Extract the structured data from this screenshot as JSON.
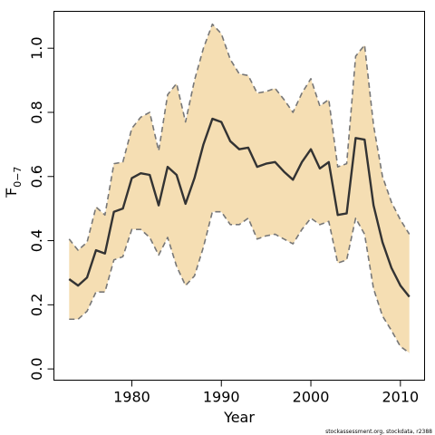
{
  "chart_data": {
    "type": "line",
    "title": "",
    "xlabel": "Year",
    "ylabel_main": "F",
    "ylabel_sub": "0−7",
    "xlim": [
      1971.3,
      2012.7
    ],
    "ylim": [
      -0.035,
      1.115
    ],
    "xticks": [
      1980,
      1990,
      2000,
      2010
    ],
    "yticks": [
      0.0,
      0.2,
      0.4,
      0.6,
      0.8,
      1.0
    ],
    "ytick_labels": [
      "0.0",
      "0.2",
      "0.4",
      "0.6",
      "0.8",
      "1.0"
    ],
    "band_color": "#F5DEB3",
    "line_color": "#333333",
    "bound_color": "#777777",
    "x": [
      1973,
      1974,
      1975,
      1976,
      1977,
      1978,
      1979,
      1980,
      1981,
      1982,
      1983,
      1984,
      1985,
      1986,
      1987,
      1988,
      1989,
      1990,
      1991,
      1992,
      1993,
      1994,
      1995,
      1996,
      1997,
      1998,
      1999,
      2000,
      2001,
      2002,
      2003,
      2004,
      2005,
      2006,
      2007,
      2008,
      2009,
      2010,
      2011
    ],
    "series": [
      {
        "name": "",
        "role": "estimate",
        "values": [
          0.28,
          0.26,
          0.285,
          0.37,
          0.36,
          0.49,
          0.5,
          0.595,
          0.61,
          0.605,
          0.51,
          0.63,
          0.605,
          0.515,
          0.595,
          0.7,
          0.78,
          0.77,
          0.71,
          0.685,
          0.69,
          0.63,
          0.64,
          0.645,
          0.615,
          0.59,
          0.645,
          0.685,
          0.625,
          0.645,
          0.48,
          0.485,
          0.72,
          0.715,
          0.51,
          0.395,
          0.315,
          0.26,
          0.225
        ]
      },
      {
        "name": "",
        "role": "upper",
        "values": [
          0.405,
          0.37,
          0.395,
          0.505,
          0.48,
          0.64,
          0.645,
          0.75,
          0.785,
          0.8,
          0.68,
          0.855,
          0.89,
          0.77,
          0.9,
          1.0,
          1.075,
          1.045,
          0.965,
          0.92,
          0.915,
          0.86,
          0.865,
          0.875,
          0.84,
          0.8,
          0.86,
          0.905,
          0.82,
          0.84,
          0.63,
          0.64,
          0.975,
          1.01,
          0.76,
          0.6,
          0.52,
          0.465,
          0.42
        ]
      },
      {
        "name": "",
        "role": "lower",
        "values": [
          0.155,
          0.155,
          0.18,
          0.24,
          0.24,
          0.34,
          0.35,
          0.435,
          0.435,
          0.41,
          0.355,
          0.41,
          0.32,
          0.26,
          0.29,
          0.38,
          0.49,
          0.49,
          0.45,
          0.45,
          0.47,
          0.405,
          0.415,
          0.42,
          0.405,
          0.39,
          0.435,
          0.47,
          0.45,
          0.46,
          0.33,
          0.34,
          0.47,
          0.42,
          0.25,
          0.165,
          0.12,
          0.07,
          0.05
        ]
      }
    ]
  },
  "footer": {
    "credit": "stockassessment.org, stockdata, r2388"
  }
}
